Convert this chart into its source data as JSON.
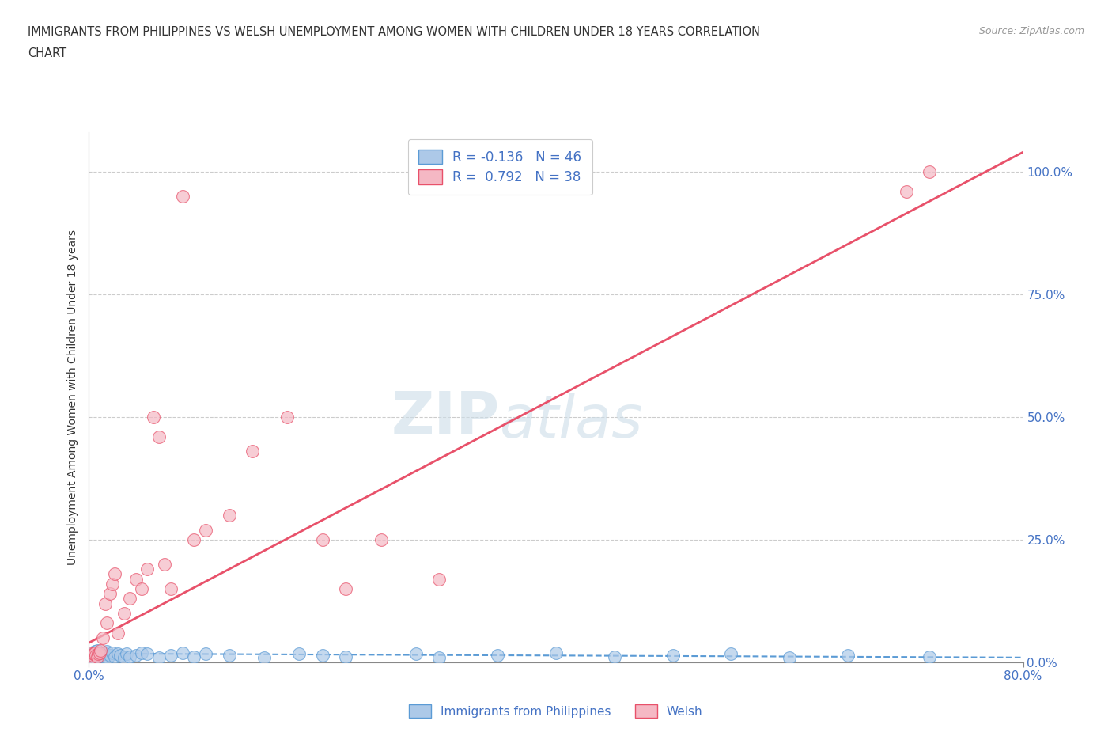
{
  "title_line1": "IMMIGRANTS FROM PHILIPPINES VS WELSH UNEMPLOYMENT AMONG WOMEN WITH CHILDREN UNDER 18 YEARS CORRELATION",
  "title_line2": "CHART",
  "source": "Source: ZipAtlas.com",
  "ylabel": "Unemployment Among Women with Children Under 18 years",
  "ytick_labels": [
    "0.0%",
    "25.0%",
    "50.0%",
    "75.0%",
    "100.0%"
  ],
  "ytick_values": [
    0.0,
    0.25,
    0.5,
    0.75,
    1.0
  ],
  "xlim": [
    0.0,
    0.8
  ],
  "ylim": [
    0.0,
    1.08
  ],
  "color_blue": "#adc9e8",
  "color_pink": "#f5b8c4",
  "trendline_blue": "#5b9bd5",
  "trendline_pink": "#e8516a",
  "watermark_zip": "ZIP",
  "watermark_atlas": "atlas",
  "legend1_label": "R = -0.136   N = 46",
  "legend2_label": "R =  0.792   N = 38",
  "legend_bottom_blue": "Immigrants from Philippines",
  "legend_bottom_pink": "Welsh",
  "blue_label_color": "#4472c4",
  "grid_color": "#cccccc",
  "axis_color": "#888888",
  "title_color": "#333333",
  "source_color": "#999999",
  "blue_x": [
    0.0,
    0.002,
    0.003,
    0.004,
    0.005,
    0.006,
    0.007,
    0.008,
    0.009,
    0.01,
    0.012,
    0.013,
    0.014,
    0.015,
    0.016,
    0.018,
    0.02,
    0.022,
    0.025,
    0.027,
    0.03,
    0.032,
    0.035,
    0.04,
    0.045,
    0.05,
    0.06,
    0.07,
    0.08,
    0.09,
    0.1,
    0.12,
    0.15,
    0.18,
    0.2,
    0.22,
    0.28,
    0.3,
    0.35,
    0.4,
    0.45,
    0.5,
    0.55,
    0.6,
    0.65,
    0.72
  ],
  "blue_y": [
    0.02,
    0.015,
    0.018,
    0.01,
    0.022,
    0.008,
    0.025,
    0.012,
    0.018,
    0.015,
    0.02,
    0.012,
    0.018,
    0.022,
    0.01,
    0.015,
    0.02,
    0.012,
    0.018,
    0.015,
    0.01,
    0.018,
    0.012,
    0.015,
    0.02,
    0.018,
    0.01,
    0.015,
    0.02,
    0.012,
    0.018,
    0.015,
    0.01,
    0.018,
    0.015,
    0.012,
    0.018,
    0.01,
    0.015,
    0.02,
    0.012,
    0.015,
    0.018,
    0.01,
    0.015,
    0.012
  ],
  "pink_x": [
    0.0,
    0.002,
    0.003,
    0.004,
    0.005,
    0.006,
    0.007,
    0.008,
    0.009,
    0.01,
    0.012,
    0.014,
    0.015,
    0.018,
    0.02,
    0.022,
    0.025,
    0.03,
    0.035,
    0.04,
    0.045,
    0.05,
    0.055,
    0.06,
    0.065,
    0.07,
    0.08,
    0.09,
    0.1,
    0.12,
    0.14,
    0.17,
    0.2,
    0.22,
    0.25,
    0.3,
    0.7,
    0.72
  ],
  "pink_y": [
    0.02,
    0.01,
    0.015,
    0.018,
    0.02,
    0.015,
    0.012,
    0.018,
    0.02,
    0.025,
    0.05,
    0.12,
    0.08,
    0.14,
    0.16,
    0.18,
    0.06,
    0.1,
    0.13,
    0.17,
    0.15,
    0.19,
    0.5,
    0.46,
    0.2,
    0.15,
    0.95,
    0.25,
    0.27,
    0.3,
    0.43,
    0.5,
    0.25,
    0.15,
    0.25,
    0.17,
    0.96,
    1.0
  ],
  "pink_trendline_x": [
    0.0,
    0.8
  ],
  "pink_trendline_y": [
    0.04,
    1.04
  ],
  "blue_trendline_x": [
    0.0,
    0.8
  ],
  "blue_trendline_y": [
    0.018,
    0.01
  ]
}
